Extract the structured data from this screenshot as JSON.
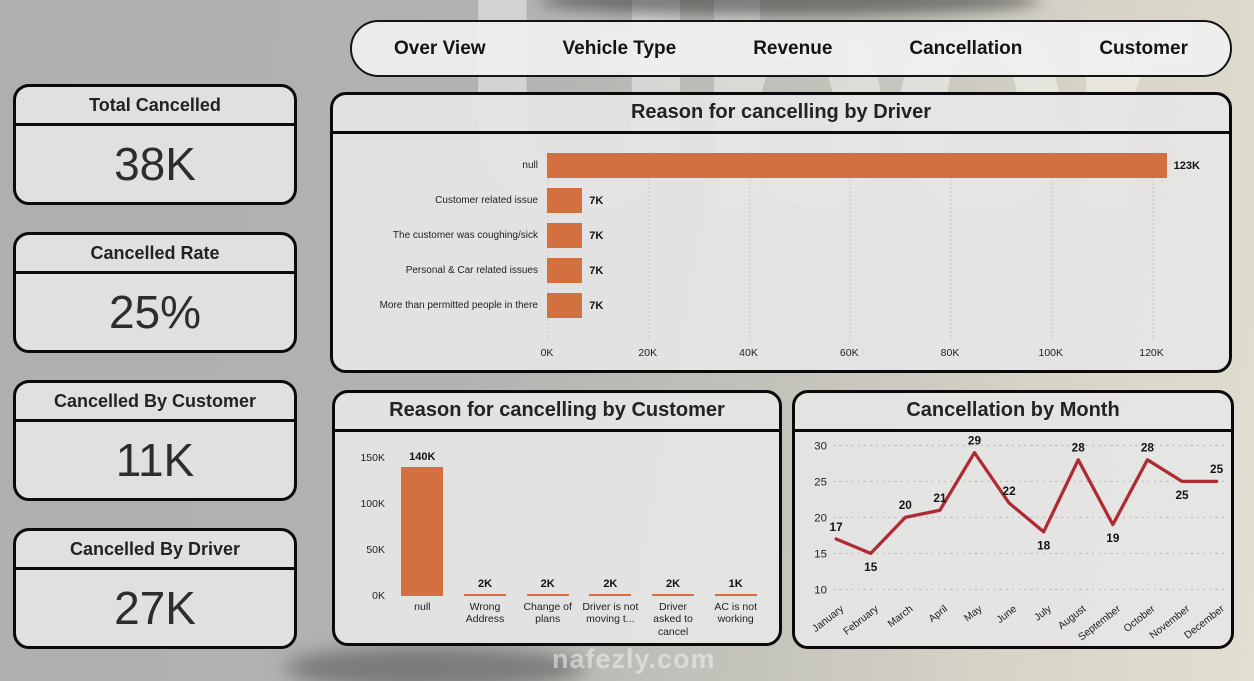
{
  "nav": {
    "tabs": [
      {
        "label": "Over View"
      },
      {
        "label": "Vehicle Type"
      },
      {
        "label": "Revenue"
      },
      {
        "label": "Cancellation"
      },
      {
        "label": "Customer"
      }
    ]
  },
  "kpis": [
    {
      "title": "Total Cancelled",
      "value": "38K"
    },
    {
      "title": "Cancelled Rate",
      "value": "25%"
    },
    {
      "title": "Cancelled By Customer",
      "value": "11K"
    },
    {
      "title": "Cancelled By Driver",
      "value": "27K"
    }
  ],
  "colors": {
    "bar_orange": "#D2703F",
    "line_red": "#AE2B33",
    "panel_bg": "#E5E5E5",
    "border": "#0A0A0A"
  },
  "background_brand": "Uber",
  "watermark": "nafezly.com",
  "chart_data": [
    {
      "id": "driver_reasons",
      "type": "bar",
      "orientation": "horizontal",
      "title": "Reason for cancelling by Driver",
      "categories": [
        "null",
        "Customer related issue",
        "The customer was coughing/sick",
        "Personal & Car related issues",
        "More than permitted people in there"
      ],
      "values": [
        123000,
        7000,
        7000,
        7000,
        7000
      ],
      "value_labels": [
        "123K",
        "7K",
        "7K",
        "7K",
        "7K"
      ],
      "x_ticks": [
        "0K",
        "20K",
        "40K",
        "60K",
        "80K",
        "100K",
        "120K"
      ],
      "x_tick_values": [
        0,
        20000,
        40000,
        60000,
        80000,
        100000,
        120000
      ],
      "xlim": [
        0,
        133000
      ],
      "grid": "dotted-vertical",
      "xlabel": "",
      "ylabel": ""
    },
    {
      "id": "customer_reasons",
      "type": "bar",
      "orientation": "vertical",
      "title": "Reason for cancelling by Customer",
      "categories": [
        "null",
        "Wrong Address",
        "Change of plans",
        "Driver is not moving t...",
        "Driver asked to cancel",
        "AC is not working"
      ],
      "values": [
        140000,
        2000,
        2000,
        2000,
        2000,
        1000
      ],
      "value_labels": [
        "140K",
        "2K",
        "2K",
        "2K",
        "2K",
        "1K"
      ],
      "y_ticks": [
        "150K",
        "100K",
        "50K",
        "0K"
      ],
      "y_tick_values": [
        150000,
        100000,
        50000,
        0
      ],
      "ylim": [
        0,
        150000
      ],
      "grid": "off",
      "xlabel": "",
      "ylabel": ""
    },
    {
      "id": "cancellation_by_month",
      "type": "line",
      "title": "Cancellation by Month",
      "categories": [
        "January",
        "February",
        "March",
        "April",
        "May",
        "June",
        "July",
        "August",
        "September",
        "October",
        "November",
        "December"
      ],
      "values": [
        17,
        15,
        20,
        21,
        29,
        22,
        18,
        28,
        19,
        28,
        25,
        25
      ],
      "y_ticks": [
        30,
        25,
        20,
        15,
        10
      ],
      "ylim": [
        10,
        30
      ],
      "label_side": [
        "above",
        "below",
        "above",
        "above",
        "above",
        "above",
        "below",
        "above",
        "below",
        "above",
        "below",
        "above"
      ],
      "grid": "dotted-horizontal",
      "line_color": "#AE2B33",
      "xlabel": "",
      "ylabel": ""
    }
  ]
}
